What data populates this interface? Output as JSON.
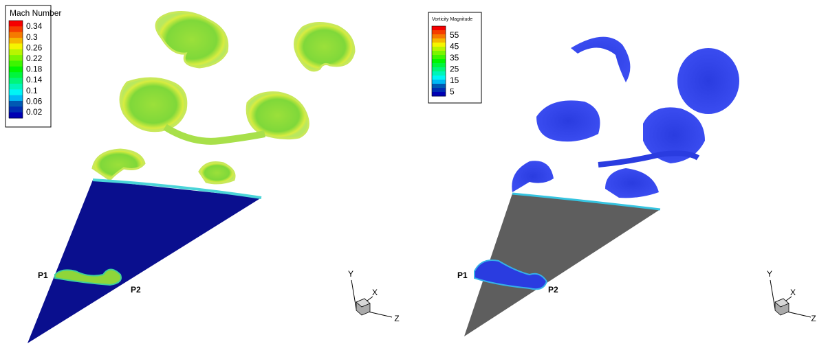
{
  "panels": [
    {
      "legend": {
        "title": "Mach Number",
        "ticks": [
          0.34,
          0.3,
          0.26,
          0.22,
          0.18,
          0.14,
          0.1,
          0.06,
          0.02
        ]
      },
      "points": [
        "P1",
        "P2"
      ],
      "axes": [
        "Y",
        "X",
        "Z"
      ]
    },
    {
      "legend": {
        "title": "Vorticity Magnitude",
        "ticks": [
          55,
          45,
          35,
          25,
          15,
          5
        ]
      },
      "points": [
        "P1",
        "P2"
      ],
      "axes": [
        "Y",
        "X",
        "Z"
      ]
    }
  ]
}
